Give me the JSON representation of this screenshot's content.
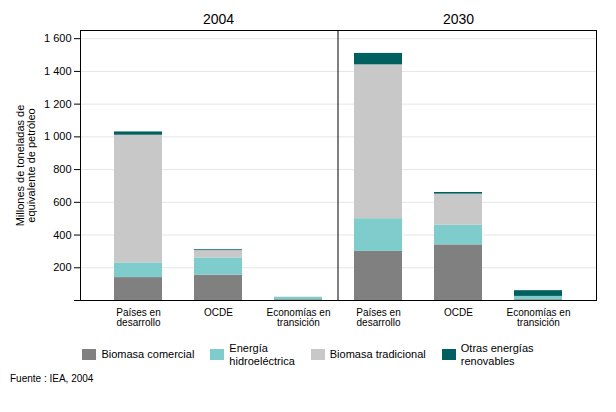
{
  "chart_data": {
    "type": "bar",
    "stacked": true,
    "ylabel": "Millones de toneladas de\nequivalente de petróleo",
    "annotations": [
      "2004",
      "2030"
    ],
    "caption": "Fuente : IEA, 2004",
    "categories": [
      "Países en\ndesarrollo",
      "OCDE",
      "Economías en\ntransición",
      "Países en\ndesarrollo",
      "OCDE",
      "Economías en\ntransición"
    ],
    "series": [
      {
        "name": "Biomasa comercial",
        "color": "#808080",
        "values": [
          140,
          155,
          5,
          300,
          340,
          5
        ]
      },
      {
        "name": "Energía\nhidroeléctrica",
        "color": "#7fcccc",
        "values": [
          90,
          105,
          15,
          200,
          120,
          20
        ]
      },
      {
        "name": "Biomasa tradicional",
        "color": "#c8c8c8",
        "values": [
          780,
          45,
          0,
          940,
          190,
          0
        ]
      },
      {
        "name": "Otras energías\nrenovables",
        "color": "#006060",
        "values": [
          20,
          5,
          0,
          70,
          10,
          35
        ]
      }
    ],
    "ylim": [
      0,
      1650
    ],
    "yticks": [
      {
        "value": 0,
        "label": ""
      },
      200,
      400,
      600,
      800,
      {
        "value": 1000,
        "label": "1 000"
      },
      {
        "value": 1200,
        "label": "1 200"
      },
      {
        "value": 1400,
        "label": "1 400"
      },
      {
        "value": 1600,
        "label": "1 600"
      }
    ],
    "grid": true,
    "legend": "bottom"
  }
}
